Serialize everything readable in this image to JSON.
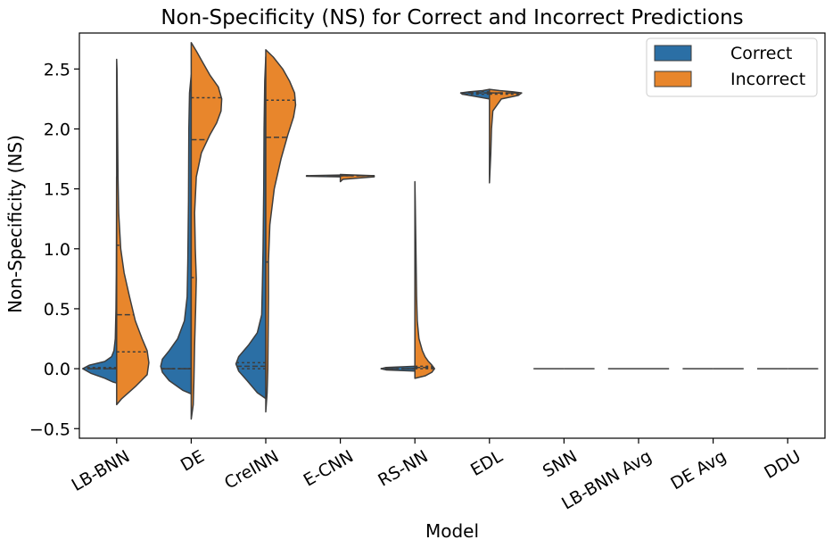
{
  "chart_data": {
    "type": "violin",
    "split": true,
    "title": "Non-Specificity (NS) for Correct and Incorrect Predictions",
    "xlabel": "Model",
    "ylabel": "Non-Specificity (NS)",
    "ylim": [
      -0.58,
      2.8
    ],
    "yticks": [
      -0.5,
      0.0,
      0.5,
      1.0,
      1.5,
      2.0,
      2.5
    ],
    "ytick_labels": [
      "−0.5",
      "0.0",
      "0.5",
      "1.0",
      "1.5",
      "2.0",
      "2.5"
    ],
    "categories": [
      "LB-BNN",
      "DE",
      "CreINN",
      "E-CNN",
      "RS-NN",
      "EDL",
      "SNN",
      "LB-BNN Avg",
      "DE Avg",
      "DDU"
    ],
    "legend": {
      "placement": "top-right"
    },
    "series": [
      {
        "name": "Correct",
        "color": "#2b6fa5",
        "violins": [
          {
            "profile": [
              [
                -0.12,
                0.0
              ],
              [
                -0.11,
                0.12
              ],
              [
                -0.08,
                0.35
              ],
              [
                -0.04,
                0.75
              ],
              [
                0.0,
                1.0
              ],
              [
                0.03,
                0.8
              ],
              [
                0.06,
                0.35
              ],
              [
                0.1,
                0.15
              ],
              [
                0.15,
                0.08
              ],
              [
                0.25,
                0.04
              ],
              [
                0.5,
                0.02
              ],
              [
                0.8,
                0.01
              ],
              [
                1.2,
                0.005
              ],
              [
                1.6,
                0.002
              ]
            ],
            "quartiles": [
              0.0,
              0.0,
              0.01
            ]
          },
          {
            "profile": [
              [
                -0.21,
                0.0
              ],
              [
                -0.18,
                0.25
              ],
              [
                -0.1,
                0.65
              ],
              [
                -0.03,
                0.85
              ],
              [
                0.02,
                0.9
              ],
              [
                0.08,
                0.85
              ],
              [
                0.15,
                0.65
              ],
              [
                0.25,
                0.4
              ],
              [
                0.4,
                0.2
              ],
              [
                0.6,
                0.12
              ],
              [
                0.9,
                0.1
              ],
              [
                1.4,
                0.08
              ],
              [
                2.0,
                0.07
              ],
              [
                2.3,
                0.05
              ],
              [
                2.45,
                0.0
              ]
            ],
            "quartiles": [
              0.0,
              0.0,
              0.0
            ]
          },
          {
            "profile": [
              [
                -0.25,
                0.0
              ],
              [
                -0.2,
                0.25
              ],
              [
                -0.1,
                0.55
              ],
              [
                -0.02,
                0.8
              ],
              [
                0.04,
                0.88
              ],
              [
                0.1,
                0.8
              ],
              [
                0.2,
                0.5
              ],
              [
                0.3,
                0.25
              ],
              [
                0.45,
                0.12
              ],
              [
                0.7,
                0.1
              ],
              [
                1.0,
                0.08
              ],
              [
                1.5,
                0.06
              ],
              [
                2.0,
                0.05
              ],
              [
                2.4,
                0.03
              ],
              [
                2.6,
                0.0
              ]
            ],
            "quartiles": [
              0.0,
              0.02,
              0.05
            ]
          },
          {
            "profile": [
              [
                1.6,
                0.0
              ],
              [
                1.605,
                1.0
              ],
              [
                1.61,
                1.0
              ],
              [
                1.615,
                0.0
              ]
            ],
            "quartiles": [
              1.61,
              1.61,
              1.61
            ]
          },
          {
            "profile": [
              [
                -0.02,
                0.0
              ],
              [
                -0.01,
                0.85
              ],
              [
                0.0,
                1.0
              ],
              [
                0.01,
                0.85
              ],
              [
                0.02,
                0.0
              ]
            ],
            "quartiles": [
              0.0,
              0.0,
              0.0
            ]
          },
          {
            "profile": [
              [
                2.25,
                0.0
              ],
              [
                2.27,
                0.4
              ],
              [
                2.29,
                0.8
              ],
              [
                2.3,
                0.85
              ],
              [
                2.31,
                0.6
              ],
              [
                2.32,
                0.2
              ],
              [
                2.33,
                0.0
              ]
            ],
            "quartiles": [
              2.29,
              2.3,
              2.31
            ]
          },
          {
            "profile": [
              [
                0.0,
                0.0
              ],
              [
                0.0,
                0.0
              ]
            ],
            "quartiles": [
              0.0,
              0.0,
              0.0
            ]
          },
          {
            "profile": [
              [
                0.0,
                0.0
              ],
              [
                0.0,
                0.0
              ]
            ],
            "quartiles": [
              0.0,
              0.0,
              0.0
            ]
          },
          {
            "profile": [
              [
                0.0,
                0.0
              ],
              [
                0.0,
                0.0
              ]
            ],
            "quartiles": [
              0.0,
              0.0,
              0.0
            ]
          },
          {
            "profile": [
              [
                0.0,
                0.0
              ],
              [
                0.0,
                0.0
              ]
            ],
            "quartiles": [
              0.0,
              0.0,
              0.0
            ]
          }
        ]
      },
      {
        "name": "Incorrect",
        "color": "#e8862c",
        "violins": [
          {
            "profile": [
              [
                -0.3,
                0.0
              ],
              [
                -0.25,
                0.15
              ],
              [
                -0.15,
                0.55
              ],
              [
                -0.05,
                0.9
              ],
              [
                0.05,
                0.95
              ],
              [
                0.15,
                0.9
              ],
              [
                0.25,
                0.75
              ],
              [
                0.4,
                0.55
              ],
              [
                0.6,
                0.38
              ],
              [
                0.8,
                0.22
              ],
              [
                1.0,
                0.12
              ],
              [
                1.3,
                0.06
              ],
              [
                1.6,
                0.04
              ],
              [
                1.9,
                0.03
              ],
              [
                2.2,
                0.02
              ],
              [
                2.5,
                0.01
              ],
              [
                2.58,
                0.0
              ]
            ],
            "quartiles": [
              0.14,
              0.45,
              1.03
            ]
          },
          {
            "profile": [
              [
                -0.42,
                0.0
              ],
              [
                -0.3,
                0.06
              ],
              [
                -0.1,
                0.08
              ],
              [
                0.2,
                0.1
              ],
              [
                0.5,
                0.13
              ],
              [
                0.75,
                0.15
              ],
              [
                1.0,
                0.12
              ],
              [
                1.3,
                0.1
              ],
              [
                1.6,
                0.15
              ],
              [
                1.8,
                0.3
              ],
              [
                1.95,
                0.55
              ],
              [
                2.05,
                0.75
              ],
              [
                2.15,
                0.88
              ],
              [
                2.25,
                0.9
              ],
              [
                2.35,
                0.8
              ],
              [
                2.45,
                0.55
              ],
              [
                2.55,
                0.35
              ],
              [
                2.65,
                0.15
              ],
              [
                2.72,
                0.0
              ]
            ],
            "quartiles": [
              0.76,
              1.91,
              2.26
            ]
          },
          {
            "profile": [
              [
                -0.36,
                0.0
              ],
              [
                -0.2,
                0.04
              ],
              [
                0.0,
                0.06
              ],
              [
                0.3,
                0.07
              ],
              [
                0.6,
                0.08
              ],
              [
                0.9,
                0.08
              ],
              [
                1.2,
                0.12
              ],
              [
                1.5,
                0.25
              ],
              [
                1.75,
                0.45
              ],
              [
                1.95,
                0.65
              ],
              [
                2.1,
                0.82
              ],
              [
                2.2,
                0.88
              ],
              [
                2.3,
                0.85
              ],
              [
                2.4,
                0.7
              ],
              [
                2.5,
                0.5
              ],
              [
                2.6,
                0.22
              ],
              [
                2.66,
                0.0
              ]
            ],
            "quartiles": [
              0.89,
              1.93,
              2.24
            ]
          },
          {
            "profile": [
              [
                1.56,
                0.0
              ],
              [
                1.58,
                0.08
              ],
              [
                1.6,
                1.0
              ],
              [
                1.61,
                1.0
              ],
              [
                1.62,
                0.0
              ]
            ],
            "quartiles": [
              1.61,
              1.61,
              1.61
            ]
          },
          {
            "profile": [
              [
                -0.08,
                0.0
              ],
              [
                -0.06,
                0.3
              ],
              [
                -0.03,
                0.5
              ],
              [
                0.0,
                0.58
              ],
              [
                0.03,
                0.5
              ],
              [
                0.06,
                0.4
              ],
              [
                0.1,
                0.3
              ],
              [
                0.15,
                0.22
              ],
              [
                0.25,
                0.12
              ],
              [
                0.4,
                0.07
              ],
              [
                0.6,
                0.05
              ],
              [
                0.8,
                0.04
              ],
              [
                1.0,
                0.03
              ],
              [
                1.2,
                0.02
              ],
              [
                1.4,
                0.01
              ],
              [
                1.56,
                0.0
              ]
            ],
            "quartiles": [
              0.0,
              0.01,
              0.02
            ]
          },
          {
            "profile": [
              [
                1.55,
                0.0
              ],
              [
                1.8,
                0.04
              ],
              [
                2.0,
                0.06
              ],
              [
                2.15,
                0.1
              ],
              [
                2.25,
                0.35
              ],
              [
                2.28,
                0.85
              ],
              [
                2.3,
                0.95
              ],
              [
                2.31,
                0.7
              ],
              [
                2.32,
                0.3
              ],
              [
                2.33,
                0.0
              ]
            ],
            "quartiles": [
              2.29,
              2.3,
              2.3
            ]
          },
          {
            "profile": [
              [
                0.0,
                0.0
              ],
              [
                0.0,
                0.0
              ]
            ],
            "quartiles": [
              0.0,
              0.0,
              0.0
            ]
          },
          {
            "profile": [
              [
                0.0,
                0.0
              ],
              [
                0.0,
                0.0
              ]
            ],
            "quartiles": [
              0.0,
              0.0,
              0.0
            ]
          },
          {
            "profile": [
              [
                0.0,
                0.0
              ],
              [
                0.0,
                0.0
              ]
            ],
            "quartiles": [
              0.0,
              0.0,
              0.0
            ]
          },
          {
            "profile": [
              [
                0.0,
                0.0
              ],
              [
                0.0,
                0.0
              ]
            ],
            "quartiles": [
              0.0,
              0.0,
              0.0
            ]
          }
        ]
      }
    ]
  }
}
